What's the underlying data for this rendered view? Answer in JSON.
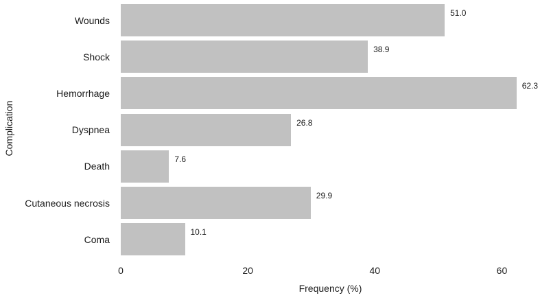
{
  "chart_data": {
    "type": "bar",
    "orientation": "horizontal",
    "title": "",
    "xlabel": "Frequency (%)",
    "ylabel": "Complication",
    "categories": [
      "Wounds",
      "Shock",
      "Hemorrhage",
      "Dyspnea",
      "Death",
      "Cutaneous necrosis",
      "Coma"
    ],
    "values": [
      51.0,
      38.9,
      62.3,
      26.8,
      7.6,
      29.9,
      10.1
    ],
    "value_labels": [
      "51.0",
      "38.9",
      "62.3",
      "26.8",
      "7.6",
      "29.9",
      "10.1"
    ],
    "x_ticks": [
      0,
      20,
      40,
      60
    ],
    "xlim": [
      0,
      66
    ],
    "grid": false,
    "legend": null,
    "bar_color": "#c1c1c1",
    "text_color": "#1a1a1a",
    "background": "#ffffff"
  }
}
